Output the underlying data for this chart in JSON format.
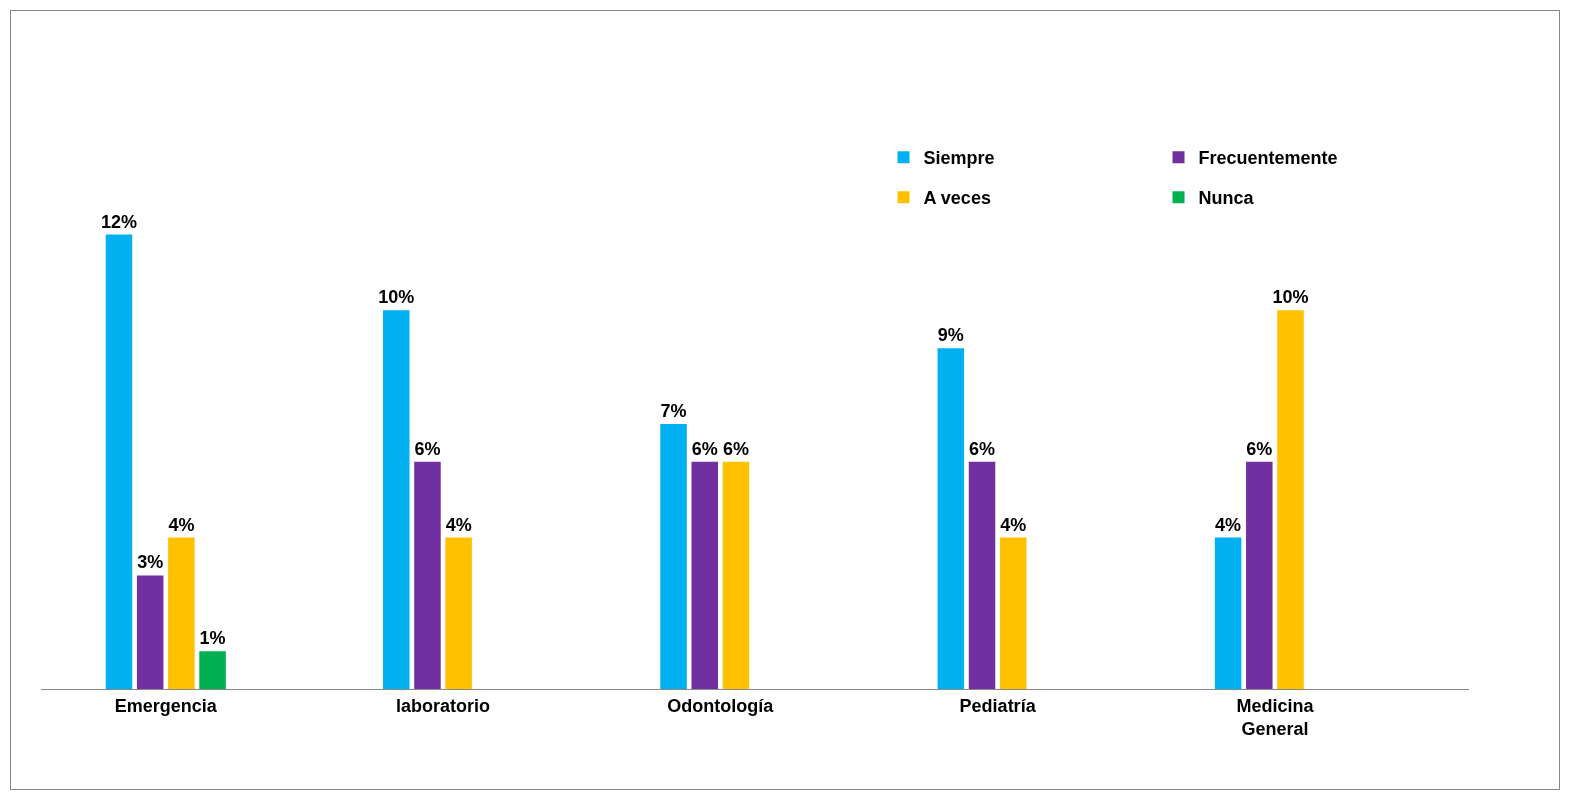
{
  "chart_data": {
    "type": "bar",
    "categories": [
      "Emergencia",
      "laboratorio",
      "Odontología",
      "Pediatría",
      "Medicina General"
    ],
    "series": [
      {
        "name": "Siempre",
        "color": "#00b0f0",
        "values": [
          12,
          10,
          7,
          9,
          4
        ],
        "value_labels": [
          "12%",
          "10%",
          "7%",
          "9%",
          "4%"
        ]
      },
      {
        "name": "Frecuentemente",
        "color": "#7030a0",
        "values": [
          3,
          6,
          6,
          6,
          6
        ],
        "value_labels": [
          "3%",
          "6%",
          "6%",
          "6%",
          "6%"
        ]
      },
      {
        "name": "A veces",
        "color": "#ffc000",
        "values": [
          4,
          4,
          6,
          4,
          10
        ],
        "value_labels": [
          "4%",
          "4%",
          "6%",
          "4%",
          "10%"
        ]
      },
      {
        "name": "Nunca",
        "color": "#00b050",
        "values": [
          1,
          null,
          null,
          null,
          null
        ],
        "value_labels": [
          "1%",
          null,
          null,
          null,
          null
        ]
      }
    ],
    "legend": "top right",
    "grid": false
  }
}
